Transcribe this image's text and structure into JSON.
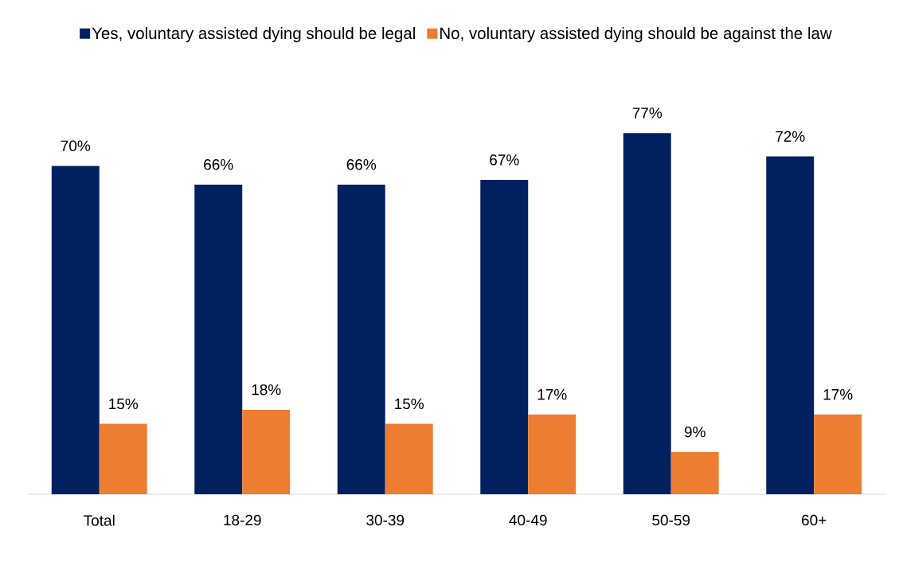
{
  "chart_data": {
    "type": "bar",
    "categories": [
      "Total",
      "18-29",
      "30-39",
      "40-49",
      "50-59",
      "60+"
    ],
    "series": [
      {
        "name": "Yes, voluntary assisted dying should be legal",
        "color": "#002060",
        "values": [
          70,
          66,
          66,
          67,
          77,
          72
        ],
        "value_labels": [
          "70%",
          "66%",
          "66%",
          "67%",
          "77%",
          "72%"
        ]
      },
      {
        "name": "No, voluntary assisted dying should be against the law",
        "color": "#ed7d31",
        "values": [
          15,
          18,
          15,
          17,
          9,
          17
        ],
        "value_labels": [
          "15%",
          "18%",
          "15%",
          "17%",
          "9%",
          "17%"
        ]
      }
    ],
    "legend": "top"
  }
}
